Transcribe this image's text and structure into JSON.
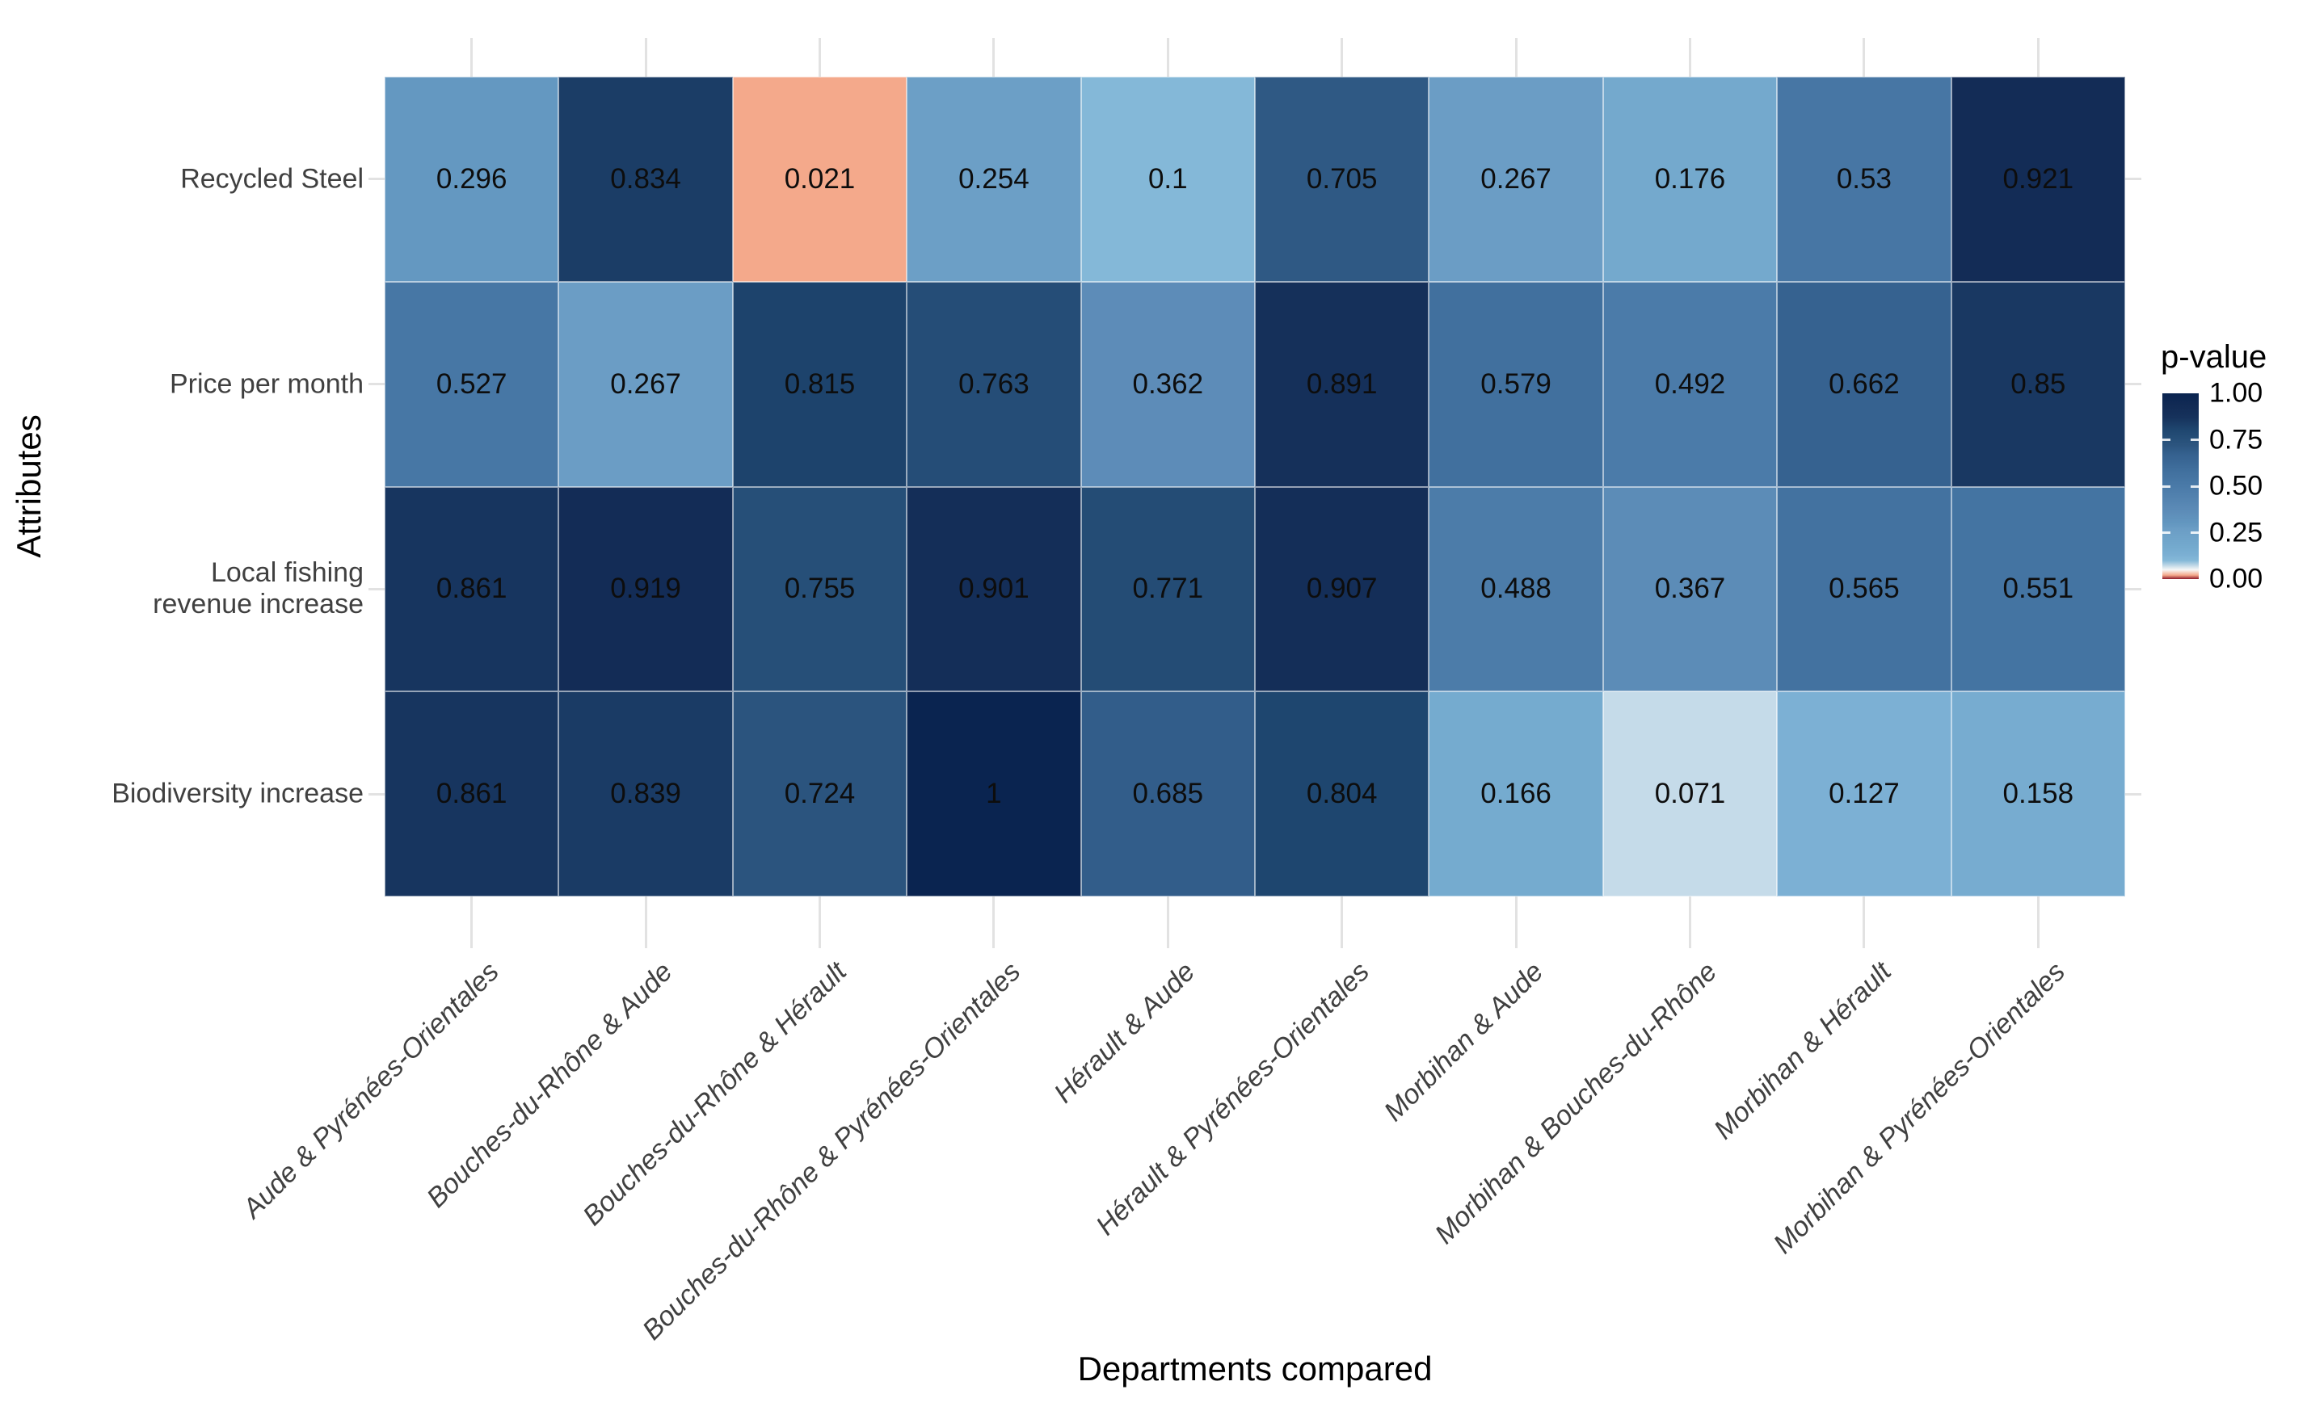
{
  "figure": {
    "background": "#FFFFFF"
  },
  "chart_data": {
    "type": "heatmap",
    "title": "",
    "xlabel": "Departments compared",
    "ylabel": "Attributes",
    "rows": [
      "Recycled Steel",
      "Price per month",
      "Local fishing\nrevenue increase",
      "Biodiversity increase"
    ],
    "columns": [
      "Aude & Pyrénées-Orientales",
      "Bouches-du-Rhône & Aude",
      "Bouches-du-Rhône & Hérault",
      "Bouches-du-Rhône & Pyrénées-Orientales",
      "Hérault & Aude",
      "Hérault & Pyrénées-Orientales",
      "Morbihan & Aude",
      "Morbihan & Bouches-du-Rhône",
      "Morbihan & Hérault",
      "Morbihan & Pyrénées-Orientales"
    ],
    "values": [
      [
        "0.296",
        "0.834",
        "0.021",
        "0.254",
        "0.1",
        "0.705",
        "0.267",
        "0.176",
        "0.53",
        "0.921"
      ],
      [
        "0.527",
        "0.267",
        "0.815",
        "0.763",
        "0.362",
        "0.891",
        "0.579",
        "0.492",
        "0.662",
        "0.85"
      ],
      [
        "0.861",
        "0.919",
        "0.755",
        "0.901",
        "0.771",
        "0.907",
        "0.488",
        "0.367",
        "0.565",
        "0.551"
      ],
      [
        "0.861",
        "0.839",
        "0.724",
        "1",
        "0.685",
        "0.804",
        "0.166",
        "0.071",
        "0.127",
        "0.158"
      ]
    ],
    "legend": {
      "title": "p-value",
      "tick_labels": [
        "1.00",
        "0.75",
        "0.50",
        "0.25",
        "0.00"
      ],
      "range": [
        0,
        1
      ],
      "position": "right"
    },
    "grid": true,
    "axis_ranges": {
      "x_type": "categorical",
      "y_type": "categorical"
    },
    "color_scale": {
      "type": "diverging-rdbu",
      "midpoint": 0.05,
      "stops": [
        [
          0.0,
          "#8E1B2B"
        ],
        [
          0.021,
          "#F4A98B"
        ],
        [
          0.05,
          "#F7F7F7"
        ],
        [
          0.071,
          "#C5DBE9"
        ],
        [
          0.1,
          "#84B8D8"
        ],
        [
          0.13,
          "#7BAFD3"
        ],
        [
          0.18,
          "#73A9CD"
        ],
        [
          0.27,
          "#6B9DC5"
        ],
        [
          0.3,
          "#6397C0"
        ],
        [
          0.37,
          "#5C8BB7"
        ],
        [
          0.5,
          "#4A7AA8"
        ],
        [
          0.58,
          "#41709E"
        ],
        [
          0.67,
          "#35618F"
        ],
        [
          0.72,
          "#2C557F"
        ],
        [
          0.8,
          "#1F4770"
        ],
        [
          0.87,
          "#16325C"
        ],
        [
          0.93,
          "#122B55"
        ],
        [
          1.0,
          "#0A2450"
        ]
      ]
    },
    "style": {
      "tick_label_color": "#404040",
      "axis_title_color": "#000000",
      "gridline_color": "#E2E2E2",
      "cell_text_color": "#0D0D0D"
    }
  }
}
